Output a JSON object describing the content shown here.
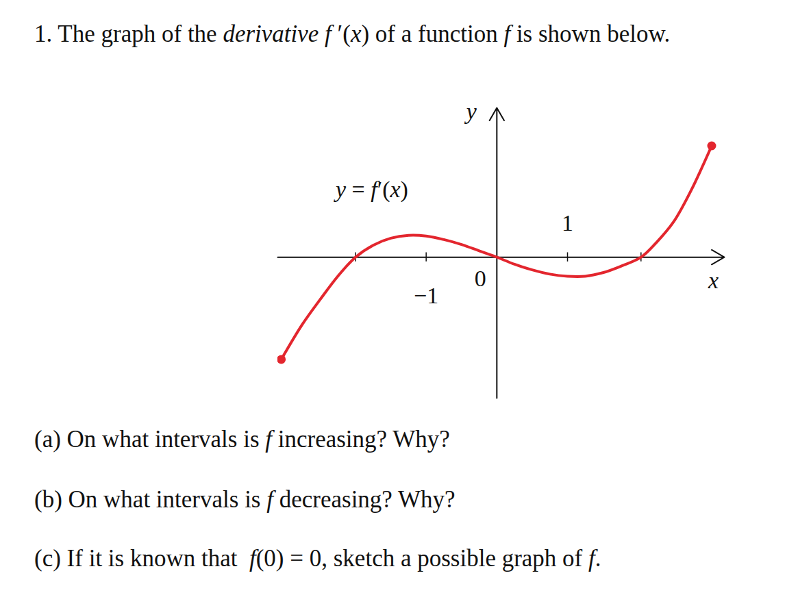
{
  "question": [
    {
      "text": "1. The graph of the "
    },
    {
      "text": "derivative",
      "italic": true
    },
    {
      "text": " "
    },
    {
      "text": "f",
      "italic": true
    },
    {
      "text": " ′("
    },
    {
      "text": "x",
      "italic": true
    },
    {
      "text": ") of a function "
    },
    {
      "text": "f",
      "italic": true
    },
    {
      "text": " is shown below."
    }
  ],
  "parts": [
    [
      {
        "text": "(a) On what intervals is "
      },
      {
        "text": "f",
        "italic": true
      },
      {
        "text": " increasing? Why?"
      }
    ],
    [
      {
        "text": "(b) On what intervals is "
      },
      {
        "text": "f",
        "italic": true
      },
      {
        "text": " decreasing? Why?"
      }
    ],
    [
      {
        "text": "(c) If it is known that  "
      },
      {
        "text": "f",
        "italic": true
      },
      {
        "text": "(0) = 0, sketch a possible graph of "
      },
      {
        "text": "f",
        "italic": true
      },
      {
        "text": "."
      }
    ]
  ],
  "chart_data": {
    "type": "line",
    "x_label": "x",
    "y_label": "y",
    "origin_label": "0",
    "x": [
      -3.05,
      -2.75,
      -2.5,
      -2.25,
      -2,
      -1.75,
      -1.5,
      -1.25,
      -1,
      -0.75,
      -0.5,
      -0.25,
      0,
      0.25,
      0.5,
      0.75,
      1,
      1.25,
      1.5,
      1.75,
      2.04,
      2.25,
      2.5,
      2.75,
      3.04
    ],
    "series": [
      {
        "name": "y = f′(x)",
        "color": "#e3262e",
        "marker": "endpoints",
        "values": [
          -1.45,
          -0.95,
          -0.6,
          -0.27,
          0,
          0.17,
          0.27,
          0.31,
          0.3,
          0.25,
          0.18,
          0.09,
          0,
          -0.1,
          -0.18,
          -0.24,
          -0.27,
          -0.27,
          -0.22,
          -0.13,
          0,
          0.2,
          0.5,
          0.95,
          1.58
        ]
      }
    ],
    "xlim": [
      -3.1,
      3.2
    ],
    "ylim": [
      -2.0,
      2.1
    ],
    "xticks": [
      {
        "value": -1,
        "label": "−1"
      },
      1
    ],
    "zeros": [
      -2,
      2.04
    ],
    "grid": false
  }
}
